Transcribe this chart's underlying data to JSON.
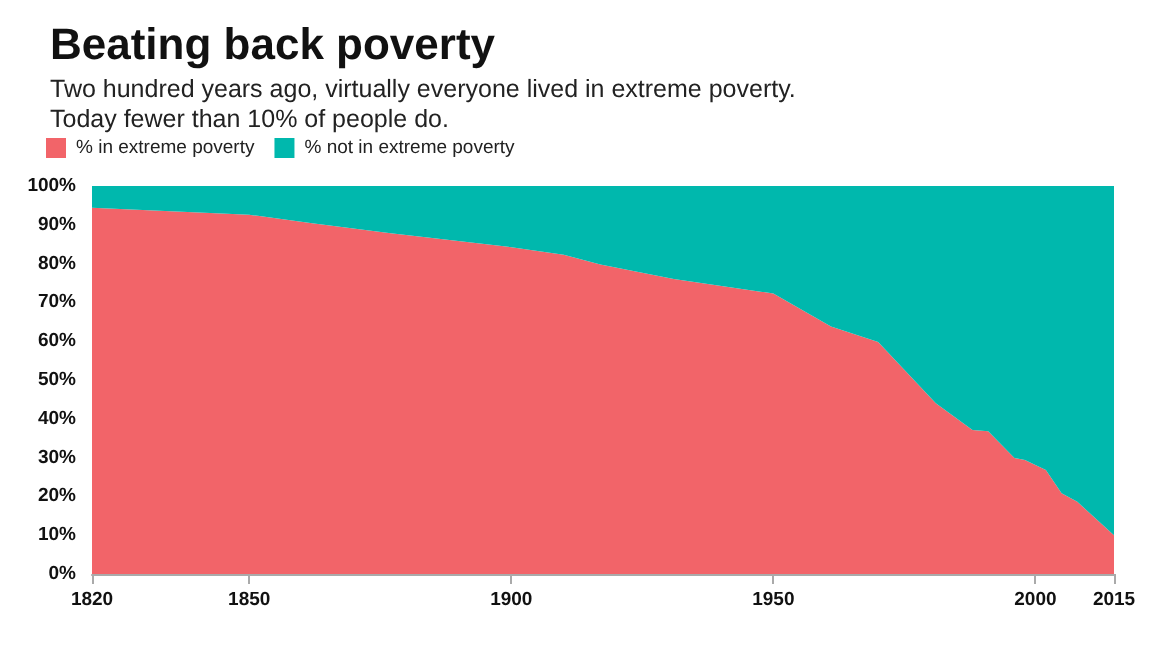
{
  "chart_data": {
    "type": "area",
    "title": "Beating back poverty",
    "subtitle": "Two hundred years ago, virtually everyone lived in extreme poverty.\nToday fewer than 10% of people do.",
    "x": [
      1820,
      1850,
      1862,
      1877,
      1899,
      1910,
      1917,
      1931,
      1950,
      1961,
      1970,
      1981,
      1988,
      1991,
      1996,
      1998,
      2002,
      2005,
      2008,
      2015
    ],
    "series": [
      {
        "name": "% in extreme poverty",
        "color": "#f26469",
        "values": [
          94.4,
          92.6,
          90.4,
          87.8,
          84.4,
          82.3,
          79.8,
          76,
          72.3,
          63.8,
          59.8,
          44,
          37.1,
          36.8,
          29.9,
          29.4,
          26.8,
          20.8,
          18.6,
          10
        ]
      },
      {
        "name": "% not in extreme poverty",
        "color": "#00b8ad",
        "values": [
          5.6,
          7.4,
          9.6,
          12.2,
          15.6,
          17.7,
          20.2,
          24,
          27.7,
          36.2,
          40.2,
          56,
          62.9,
          63.2,
          70.1,
          70.6,
          73.2,
          79.2,
          81.4,
          90
        ]
      }
    ],
    "stacked": true,
    "xlim": [
      1820,
      2015
    ],
    "xticks": [
      1820,
      1850,
      1900,
      1950,
      2000,
      2015
    ],
    "ylim": [
      0,
      100
    ],
    "yticks": [
      {
        "value": 0,
        "label": "0%"
      },
      {
        "value": 10,
        "label": "10%"
      },
      {
        "value": 20,
        "label": "20%"
      },
      {
        "value": 30,
        "label": "30%"
      },
      {
        "value": 40,
        "label": "40%"
      },
      {
        "value": 50,
        "label": "50%"
      },
      {
        "value": 60,
        "label": "60%"
      },
      {
        "value": 70,
        "label": "70%"
      },
      {
        "value": 80,
        "label": "80%"
      },
      {
        "value": 90,
        "label": "90%"
      },
      {
        "value": 100,
        "label": "100%"
      }
    ],
    "grid": false,
    "legend": "top left"
  }
}
